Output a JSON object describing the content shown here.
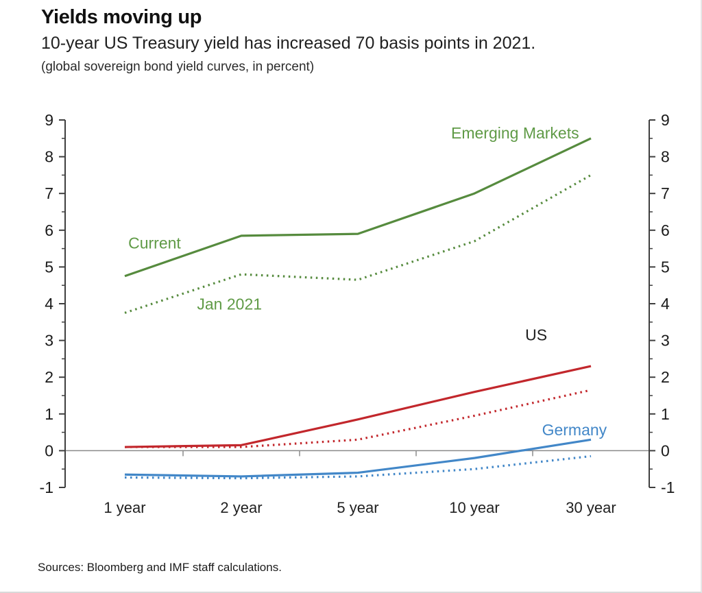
{
  "header": {
    "title": "Yields moving up",
    "subtitle": "10-year US Treasury yield has increased 70 basis points in 2021.",
    "note": "(global sovereign bond yield curves, in percent)"
  },
  "chart_data": {
    "type": "line",
    "categories": [
      "1 year",
      "2 year",
      "5 year",
      "10 year",
      "30 year"
    ],
    "xlabel": "",
    "ylabel": "percent",
    "ylim": [
      -1,
      9
    ],
    "y_ticks": [
      -1,
      0,
      1,
      2,
      3,
      4,
      5,
      6,
      7,
      8,
      9
    ],
    "grid": false,
    "axis_sides": [
      "left",
      "right"
    ],
    "legend_position": "inline-labels",
    "series": [
      {
        "id": "em-current",
        "name": "Emerging Markets - Current",
        "country": "Emerging Markets",
        "vintage": "Current",
        "style": "solid",
        "color": "#568b3e",
        "values": [
          4.75,
          5.85,
          5.9,
          7.0,
          8.5
        ]
      },
      {
        "id": "em-jan2021",
        "name": "Emerging Markets - Jan 2021",
        "country": "Emerging Markets",
        "vintage": "Jan 2021",
        "style": "dotted",
        "color": "#568b3e",
        "values": [
          3.75,
          4.8,
          4.65,
          5.7,
          7.5
        ]
      },
      {
        "id": "us-current",
        "name": "US - Current",
        "country": "US",
        "vintage": "Current",
        "style": "solid",
        "color": "#c2272c",
        "values": [
          0.1,
          0.15,
          0.85,
          1.6,
          2.3
        ]
      },
      {
        "id": "us-jan2021",
        "name": "US - Jan 2021",
        "country": "US",
        "vintage": "Jan 2021",
        "style": "dotted",
        "color": "#c2272c",
        "values": [
          0.1,
          0.1,
          0.3,
          0.95,
          1.65
        ]
      },
      {
        "id": "de-current",
        "name": "Germany - Current",
        "country": "Germany",
        "vintage": "Current",
        "style": "solid",
        "color": "#4287c8",
        "values": [
          -0.65,
          -0.7,
          -0.6,
          -0.2,
          0.3
        ]
      },
      {
        "id": "de-jan2021",
        "name": "Germany - Jan 2021",
        "country": "Germany",
        "vintage": "Jan 2021",
        "style": "dotted",
        "color": "#4287c8",
        "values": [
          -0.73,
          -0.75,
          -0.7,
          -0.5,
          -0.15
        ]
      }
    ],
    "annotations": [
      {
        "id": "current",
        "text": "Current",
        "color": "#5f9a46",
        "xi": 0.03,
        "v": 5.5,
        "anchor": "start"
      },
      {
        "id": "jan-2021",
        "text": "Jan 2021",
        "color": "#5f9a46",
        "xi": 0.62,
        "v": 3.84,
        "anchor": "start"
      },
      {
        "id": "emerging-markets",
        "text": "Emerging Markets",
        "color": "#5f9a46",
        "xi": 2.8,
        "v": 8.5,
        "anchor": "start"
      },
      {
        "id": "us",
        "text": "US",
        "color": "#1f1f1f",
        "xi": 3.53,
        "v": 3.0,
        "anchor": "middle"
      },
      {
        "id": "germany",
        "text": "Germany",
        "color": "#4287c8",
        "xi": 3.58,
        "v": 0.42,
        "anchor": "start"
      }
    ]
  },
  "footer": {
    "sources": "Sources: Bloomberg and IMF staff calculations."
  }
}
